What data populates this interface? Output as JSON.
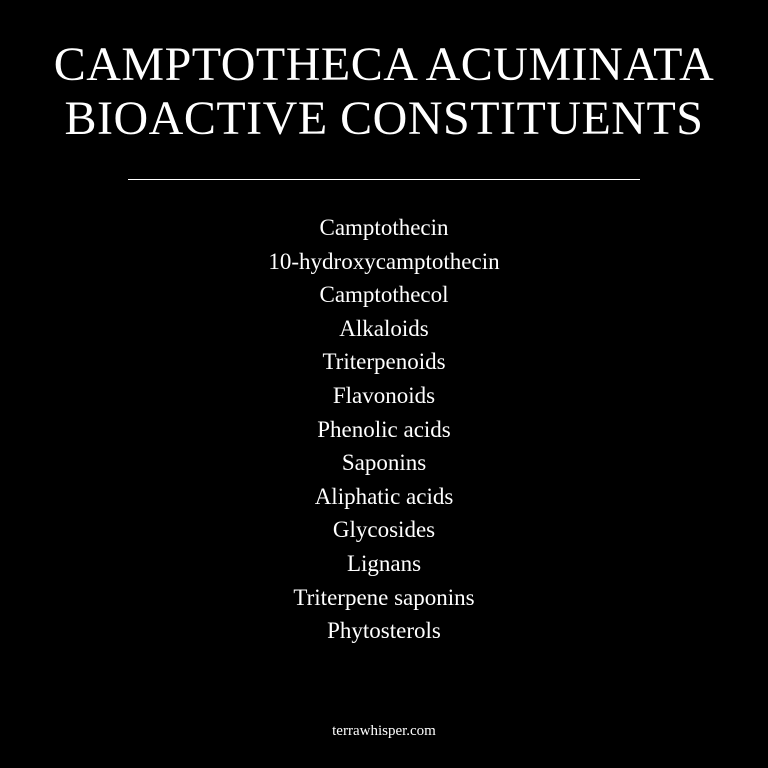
{
  "title": {
    "line1": "CAMPTOTHECA ACUMINATA",
    "line2": "BIOACTIVE CONSTITUENTS"
  },
  "constituents": [
    "Camptothecin",
    "10-hydroxycamptothecin",
    "Camptothecol",
    "Alkaloids",
    "Triterpenoids",
    "Flavonoids",
    "Phenolic acids",
    "Saponins",
    "Aliphatic acids",
    "Glycosides",
    "Lignans",
    "Triterpene saponins",
    "Phytosterols"
  ],
  "footer": {
    "website": "terrawhisper.com"
  },
  "colors": {
    "background": "#000000",
    "text": "#ffffff"
  }
}
